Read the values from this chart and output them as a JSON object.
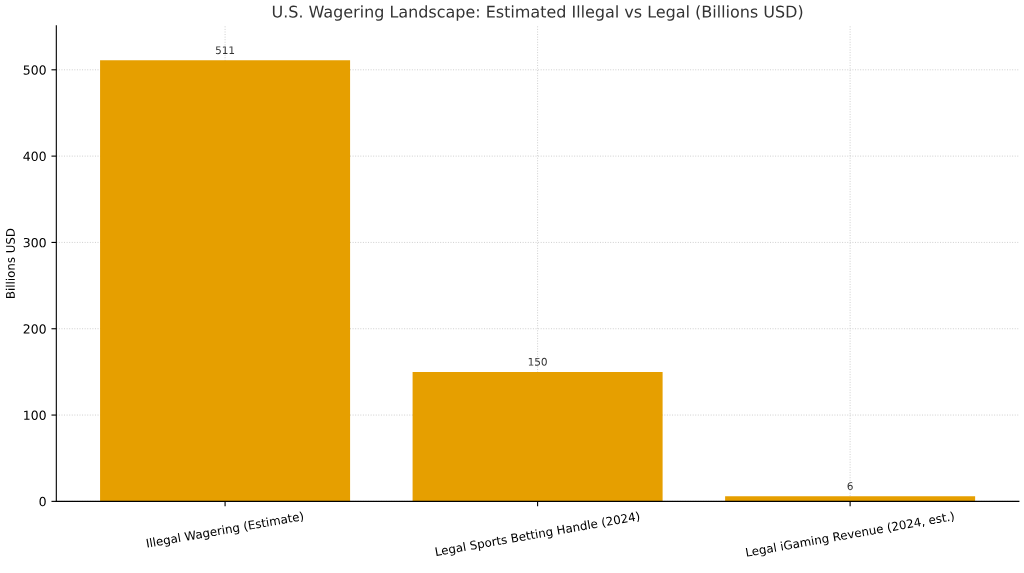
{
  "chart_data": {
    "type": "bar",
    "title": "U.S. Wagering Landscape: Estimated Illegal vs Legal (Billions USD)",
    "ylabel": "Billions USD",
    "categories": [
      "Illegal Wagering (Estimate)",
      "Legal Sports Betting Handle (2024)",
      "Legal iGaming Revenue (2024, est.)"
    ],
    "values": [
      511,
      150,
      6
    ],
    "color": "#e69f00",
    "data_labels": true,
    "ylim": [
      0,
      551
    ],
    "yticks": [
      0,
      100,
      200,
      300,
      400,
      500
    ],
    "grid": true
  }
}
